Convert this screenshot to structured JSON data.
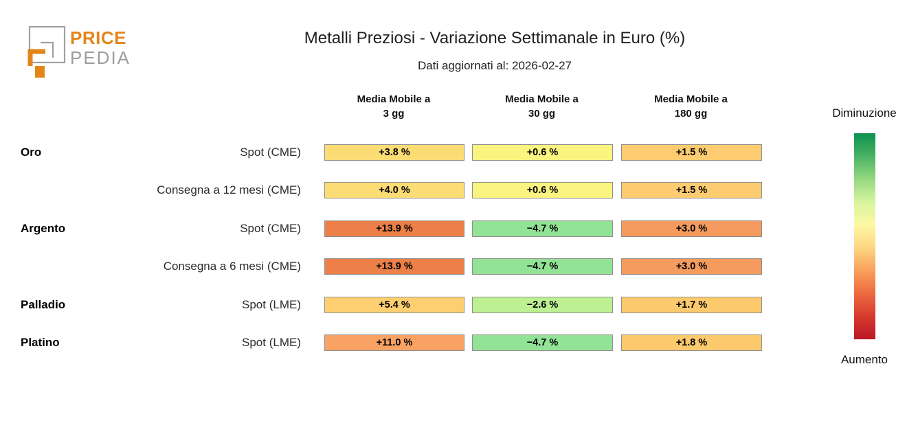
{
  "logo": {
    "line1": "PRICE",
    "line2": "PEDIA"
  },
  "header": {
    "title": "Metalli Preziosi - Variazione Settimanale in Euro (%)",
    "subtitle": "Dati aggiornati al: 2026-02-27"
  },
  "colors": {
    "accent_orange": "#e3861a",
    "logo_gray": "#a0a0a0",
    "cell_border": "#8f8f8f"
  },
  "chart_data": {
    "type": "heatmap",
    "title": "Metalli Preziosi - Variazione Settimanale in Euro (%)",
    "subtitle": "Dati aggiornati al: 2026-02-27",
    "updated_date": "2026-02-27",
    "columns": [
      {
        "line1": "Media Mobile a",
        "line2": "3 gg"
      },
      {
        "line1": "Media Mobile a",
        "line2": "30 gg"
      },
      {
        "line1": "Media Mobile a",
        "line2": "180 gg"
      }
    ],
    "rows": [
      {
        "group": "Oro",
        "label": "Spot (CME)",
        "values": [
          "+3.8 %",
          "+0.6 %",
          "+1.5 %"
        ],
        "numeric": [
          3.8,
          0.6,
          1.5
        ],
        "colors": [
          "#fcdc74",
          "#fcf480",
          "#fecc70"
        ]
      },
      {
        "group": "",
        "label": "Consegna a 12 mesi (CME)",
        "values": [
          "+4.0 %",
          "+0.6 %",
          "+1.5 %"
        ],
        "numeric": [
          4.0,
          0.6,
          1.5
        ],
        "colors": [
          "#fcdc74",
          "#fcf480",
          "#fecc70"
        ]
      },
      {
        "group": "Argento",
        "label": "Spot (CME)",
        "values": [
          "+13.9 %",
          "−4.7 %",
          "+3.0 %"
        ],
        "numeric": [
          13.9,
          -4.7,
          3.0
        ],
        "colors": [
          "#ec8048",
          "#93e396",
          "#f49b5d"
        ]
      },
      {
        "group": "",
        "label": "Consegna a 6 mesi (CME)",
        "values": [
          "+13.9 %",
          "−4.7 %",
          "+3.0 %"
        ],
        "numeric": [
          13.9,
          -4.7,
          3.0
        ],
        "colors": [
          "#ec8048",
          "#93e396",
          "#f49b5d"
        ]
      },
      {
        "group": "Palladio",
        "label": "Spot (LME)",
        "values": [
          "+5.4 %",
          "−2.6 %",
          "+1.7 %"
        ],
        "numeric": [
          5.4,
          -2.6,
          1.7
        ],
        "colors": [
          "#fdcf70",
          "#bcf093",
          "#fcc96c"
        ]
      },
      {
        "group": "Platino",
        "label": "Spot (LME)",
        "values": [
          "+11.0 %",
          "−4.7 %",
          "+1.8 %"
        ],
        "numeric": [
          11.0,
          -4.7,
          1.8
        ],
        "colors": [
          "#f8a263",
          "#93e396",
          "#fcc96c"
        ]
      }
    ],
    "legend": {
      "top_label": "Diminuzione",
      "bottom_label": "Aumento",
      "gradient": [
        "#0c9051",
        "#4ab263",
        "#94d880",
        "#d7f49e",
        "#fdf8a4",
        "#fdd683",
        "#f9a05b",
        "#ec6a40",
        "#d73a2e",
        "#bb1526"
      ]
    },
    "layout": {
      "legend_position": "right",
      "grid": false
    }
  }
}
